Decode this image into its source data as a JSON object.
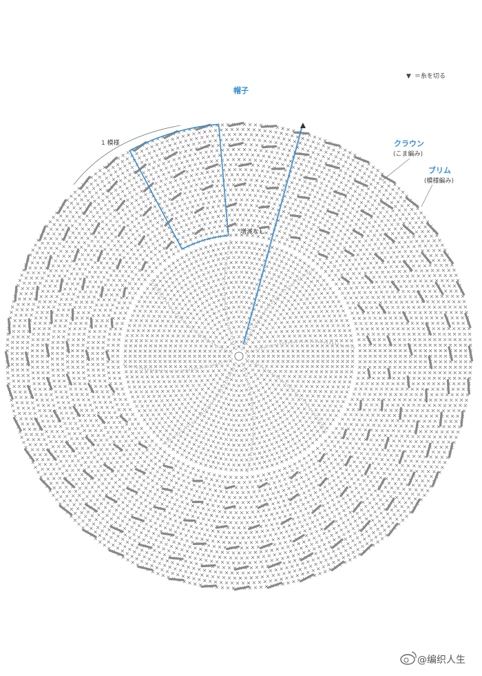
{
  "title": "帽子",
  "legend": {
    "symbol": "▼",
    "text": "＝糸を切る"
  },
  "labels": {
    "repeat": "1 模様",
    "crown": "クラウン",
    "crown_note": "(こま編み)",
    "brim": "ブリム",
    "brim_note": "(模様編み)",
    "no_change": "増減なし"
  },
  "watermark": "@编织人生",
  "colors": {
    "accent": "#3b8ed0",
    "stitch": "#555555",
    "line": "#9a9a9a"
  },
  "icons": {
    "watermark": "weibo-icon",
    "cut_yarn": "triangle-down-icon"
  }
}
